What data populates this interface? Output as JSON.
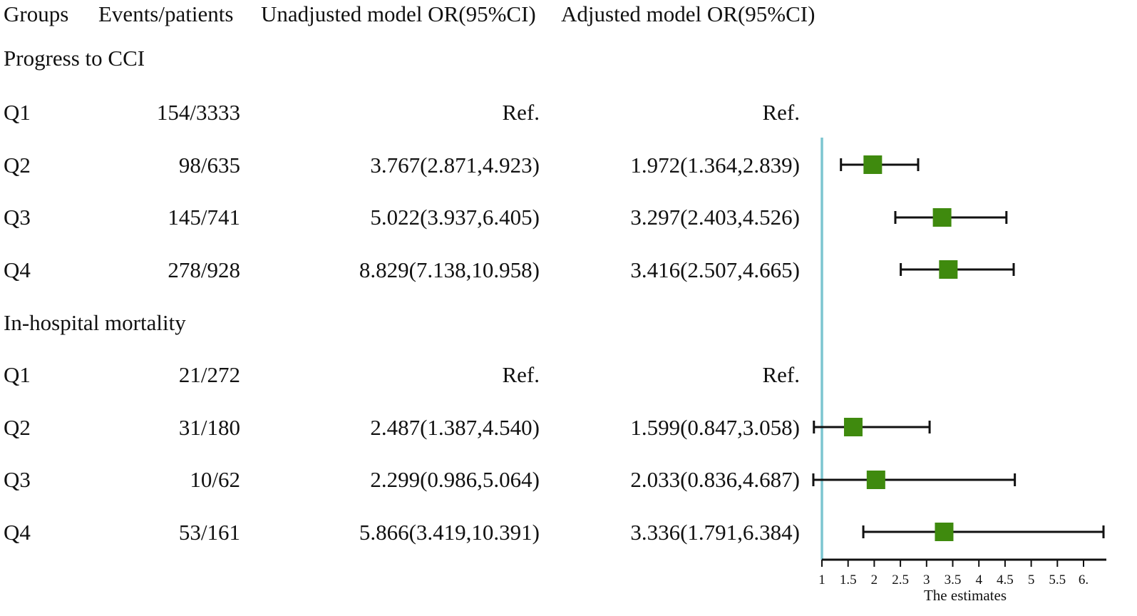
{
  "headers": {
    "groups": "Groups",
    "events": "Events/patients",
    "unadjusted": "Unadjusted model OR(95%CI)",
    "adjusted": "Adjusted model OR(95%CI)"
  },
  "sections": [
    {
      "title": "Progress to CCI",
      "rows": [
        {
          "group": "Q1",
          "events": "154/3333",
          "unadjusted": "Ref.",
          "adjusted": "Ref."
        },
        {
          "group": "Q2",
          "events": "98/635",
          "unadjusted": "3.767(2.871,4.923)",
          "adjusted": "1.972(1.364,2.839)"
        },
        {
          "group": "Q3",
          "events": "145/741",
          "unadjusted": "5.022(3.937,6.405)",
          "adjusted": "3.297(2.403,4.526)"
        },
        {
          "group": "Q4",
          "events": "278/928",
          "unadjusted": "8.829(7.138,10.958)",
          "adjusted": "3.416(2.507,4.665)"
        }
      ]
    },
    {
      "title": "In-hospital mortality",
      "rows": [
        {
          "group": "Q1",
          "events": "21/272",
          "unadjusted": "Ref.",
          "adjusted": "Ref."
        },
        {
          "group": "Q2",
          "events": "31/180",
          "unadjusted": "2.487(1.387,4.540)",
          "adjusted": "1.599(0.847,3.058)"
        },
        {
          "group": "Q3",
          "events": "10/62",
          "unadjusted": "2.299(0.986,5.064)",
          "adjusted": "2.033(0.836,4.687)"
        },
        {
          "group": "Q4",
          "events": "53/161",
          "unadjusted": "5.866(3.419,10.391)",
          "adjusted": "3.336(1.791,6.384)"
        }
      ]
    }
  ],
  "chart_data": {
    "type": "forest",
    "xlabel": "The estimates",
    "xlim": [
      1,
      6.4
    ],
    "ticks": [
      1,
      1.5,
      2,
      2.5,
      3,
      3.5,
      4,
      4.5,
      5,
      5.5,
      6
    ],
    "tick_labels": [
      "1",
      "1.5",
      "2",
      "2.5",
      "3",
      "3.5",
      "4",
      "4.5",
      "5",
      "5.5",
      "6."
    ],
    "reference_line": 1,
    "points": [
      {
        "section": "Progress to CCI",
        "group": "Q2",
        "estimate": 1.972,
        "lower": 1.364,
        "upper": 2.839
      },
      {
        "section": "Progress to CCI",
        "group": "Q3",
        "estimate": 3.297,
        "lower": 2.403,
        "upper": 4.526
      },
      {
        "section": "Progress to CCI",
        "group": "Q4",
        "estimate": 3.416,
        "lower": 2.507,
        "upper": 4.665
      },
      {
        "section": "In-hospital mortality",
        "group": "Q2",
        "estimate": 1.599,
        "lower": 0.847,
        "upper": 3.058
      },
      {
        "section": "In-hospital mortality",
        "group": "Q3",
        "estimate": 2.033,
        "lower": 0.836,
        "upper": 4.687
      },
      {
        "section": "In-hospital mortality",
        "group": "Q4",
        "estimate": 3.336,
        "lower": 1.791,
        "upper": 6.384
      }
    ],
    "colors": {
      "marker": "#3f8a0e",
      "reference_line": "#7cc5d0",
      "whisker": "#111111"
    }
  }
}
